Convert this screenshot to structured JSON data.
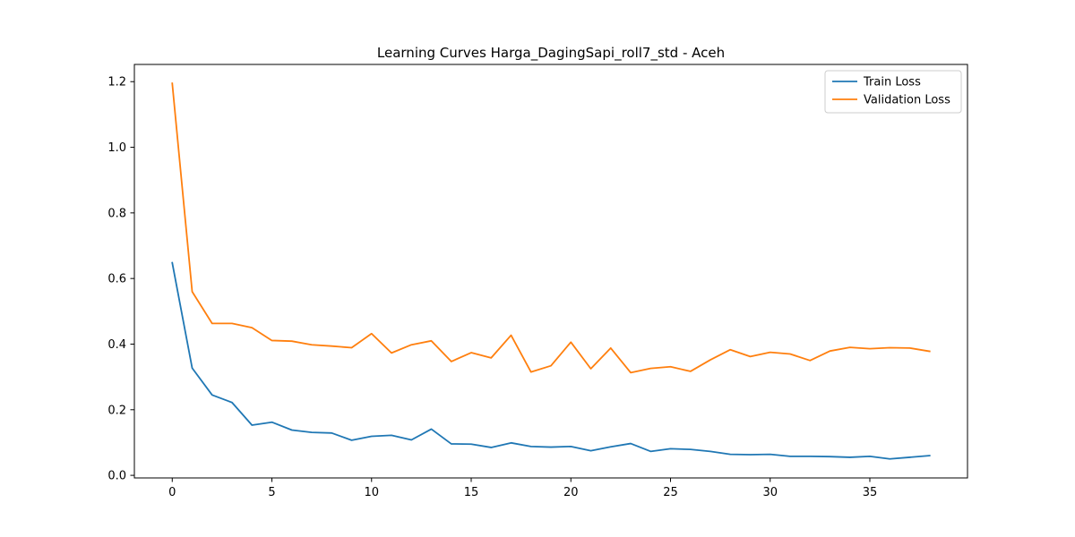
{
  "chart_data": {
    "type": "line",
    "title": "Learning Curves Harga_DagingSapi_roll7_std - Aceh",
    "xlabel": "",
    "ylabel": "",
    "xlim": [
      -1.9,
      39.9
    ],
    "ylim": [
      -0.0079,
      1.2525
    ],
    "xticks": [
      0,
      5,
      10,
      15,
      20,
      25,
      30,
      35
    ],
    "yticks": [
      0.0,
      0.2,
      0.4,
      0.6,
      0.8,
      1.0,
      1.2
    ],
    "xtick_labels": [
      "0",
      "5",
      "10",
      "15",
      "20",
      "25",
      "30",
      "35"
    ],
    "ytick_labels": [
      "0.0",
      "0.2",
      "0.4",
      "0.6",
      "0.8",
      "1.0",
      "1.2"
    ],
    "grid": false,
    "legend_position": "top-right",
    "x": [
      0,
      1,
      2,
      3,
      4,
      5,
      6,
      7,
      8,
      9,
      10,
      11,
      12,
      13,
      14,
      15,
      16,
      17,
      18,
      19,
      20,
      21,
      22,
      23,
      24,
      25,
      26,
      27,
      28,
      29,
      30,
      31,
      32,
      33,
      34,
      35,
      36,
      37,
      38
    ],
    "series": [
      {
        "name": "Train Loss",
        "color": "#1f77b4",
        "values": [
          0.648,
          0.327,
          0.245,
          0.222,
          0.153,
          0.162,
          0.138,
          0.131,
          0.129,
          0.107,
          0.119,
          0.122,
          0.108,
          0.141,
          0.096,
          0.095,
          0.085,
          0.099,
          0.088,
          0.086,
          0.088,
          0.075,
          0.087,
          0.097,
          0.073,
          0.081,
          0.079,
          0.073,
          0.064,
          0.063,
          0.064,
          0.058,
          0.058,
          0.057,
          0.055,
          0.058,
          0.05,
          0.055,
          0.06
        ]
      },
      {
        "name": "Validation Loss",
        "color": "#ff7f0e",
        "values": [
          1.195,
          0.56,
          0.463,
          0.463,
          0.45,
          0.411,
          0.409,
          0.398,
          0.394,
          0.389,
          0.432,
          0.373,
          0.398,
          0.41,
          0.347,
          0.374,
          0.358,
          0.427,
          0.315,
          0.334,
          0.406,
          0.325,
          0.388,
          0.313,
          0.326,
          0.331,
          0.317,
          0.352,
          0.383,
          0.362,
          0.375,
          0.37,
          0.35,
          0.379,
          0.39,
          0.386,
          0.389,
          0.388,
          0.378
        ]
      }
    ]
  }
}
